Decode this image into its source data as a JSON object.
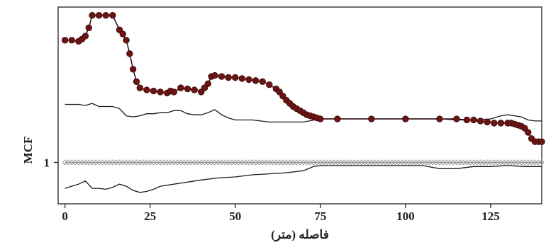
{
  "chart_data": {
    "type": "line",
    "title": "",
    "xlabel": "فاصله (متر)",
    "ylabel": "MCF",
    "xlim": [
      -2,
      140
    ],
    "ylim": [
      0.6,
      2.5
    ],
    "x_ticks": [
      0,
      25,
      50,
      75,
      100,
      125
    ],
    "x_tick_labels": [
      "0",
      "25",
      "50",
      "75",
      "100",
      "125"
    ],
    "y_ticks": [
      1
    ],
    "y_tick_labels": [
      "1"
    ],
    "grid": false,
    "colors": {
      "observed": "#6b1414",
      "envelope": "#1a1a1a",
      "reference": "#9a9a9a"
    },
    "series": [
      {
        "role": "observed",
        "style": "line-with-markers",
        "x": [
          0,
          2,
          4,
          5,
          6,
          7,
          8,
          10,
          12,
          14,
          16,
          17,
          18,
          19,
          20,
          21,
          22,
          24,
          26,
          28,
          30,
          31,
          32,
          34,
          36,
          38,
          40,
          41,
          42,
          43,
          44,
          46,
          48,
          50,
          52,
          54,
          56,
          58,
          60,
          62,
          63,
          64,
          65,
          66,
          67,
          68,
          69,
          70,
          71,
          72,
          73,
          74,
          75,
          80,
          90,
          100,
          110,
          115,
          118,
          120,
          122,
          124,
          126,
          128,
          130,
          131,
          132,
          133,
          134,
          135,
          136,
          137,
          138,
          139,
          140
        ],
        "y": [
          2.18,
          2.18,
          2.17,
          2.19,
          2.22,
          2.3,
          2.42,
          2.42,
          2.42,
          2.42,
          2.28,
          2.24,
          2.18,
          2.05,
          1.9,
          1.78,
          1.72,
          1.7,
          1.69,
          1.68,
          1.67,
          1.69,
          1.68,
          1.72,
          1.71,
          1.7,
          1.68,
          1.72,
          1.76,
          1.83,
          1.84,
          1.83,
          1.82,
          1.82,
          1.81,
          1.8,
          1.79,
          1.78,
          1.75,
          1.71,
          1.68,
          1.64,
          1.6,
          1.57,
          1.54,
          1.52,
          1.5,
          1.48,
          1.46,
          1.45,
          1.44,
          1.43,
          1.42,
          1.42,
          1.42,
          1.42,
          1.42,
          1.42,
          1.41,
          1.41,
          1.4,
          1.39,
          1.38,
          1.38,
          1.38,
          1.38,
          1.37,
          1.36,
          1.35,
          1.33,
          1.29,
          1.23,
          1.2,
          1.2,
          1.2
        ]
      },
      {
        "role": "upper-envelope",
        "style": "line",
        "x": [
          0,
          2,
          4,
          6,
          8,
          10,
          12,
          14,
          16,
          18,
          20,
          22,
          24,
          26,
          28,
          30,
          32,
          34,
          36,
          38,
          40,
          42,
          44,
          46,
          48,
          50,
          55,
          60,
          65,
          70,
          75,
          80,
          90,
          100,
          110,
          115,
          120,
          125,
          128,
          130,
          132,
          134,
          136,
          138,
          140
        ],
        "y": [
          1.56,
          1.56,
          1.56,
          1.55,
          1.57,
          1.54,
          1.54,
          1.54,
          1.52,
          1.45,
          1.44,
          1.45,
          1.47,
          1.47,
          1.48,
          1.48,
          1.5,
          1.5,
          1.47,
          1.46,
          1.46,
          1.48,
          1.51,
          1.46,
          1.43,
          1.41,
          1.41,
          1.39,
          1.39,
          1.39,
          1.42,
          1.42,
          1.42,
          1.42,
          1.42,
          1.41,
          1.41,
          1.42,
          1.45,
          1.46,
          1.45,
          1.44,
          1.41,
          1.4,
          1.4
        ]
      },
      {
        "role": "lower-envelope",
        "style": "line",
        "x": [
          0,
          2,
          4,
          6,
          8,
          10,
          12,
          14,
          16,
          18,
          20,
          22,
          24,
          26,
          28,
          30,
          32,
          36,
          40,
          45,
          50,
          55,
          60,
          65,
          70,
          73,
          75,
          80,
          90,
          100,
          105,
          110,
          115,
          120,
          125,
          130,
          135,
          138,
          140
        ],
        "y": [
          0.75,
          0.77,
          0.79,
          0.82,
          0.75,
          0.75,
          0.74,
          0.76,
          0.79,
          0.77,
          0.73,
          0.71,
          0.72,
          0.74,
          0.77,
          0.78,
          0.79,
          0.81,
          0.83,
          0.85,
          0.86,
          0.88,
          0.89,
          0.9,
          0.92,
          0.96,
          0.97,
          0.97,
          0.97,
          0.97,
          0.97,
          0.94,
          0.94,
          0.96,
          0.96,
          0.97,
          0.96,
          0.96,
          0.96
        ]
      },
      {
        "role": "reference",
        "style": "line-with-markers",
        "x": [
          0,
          140
        ],
        "y": [
          1,
          1
        ]
      }
    ]
  }
}
